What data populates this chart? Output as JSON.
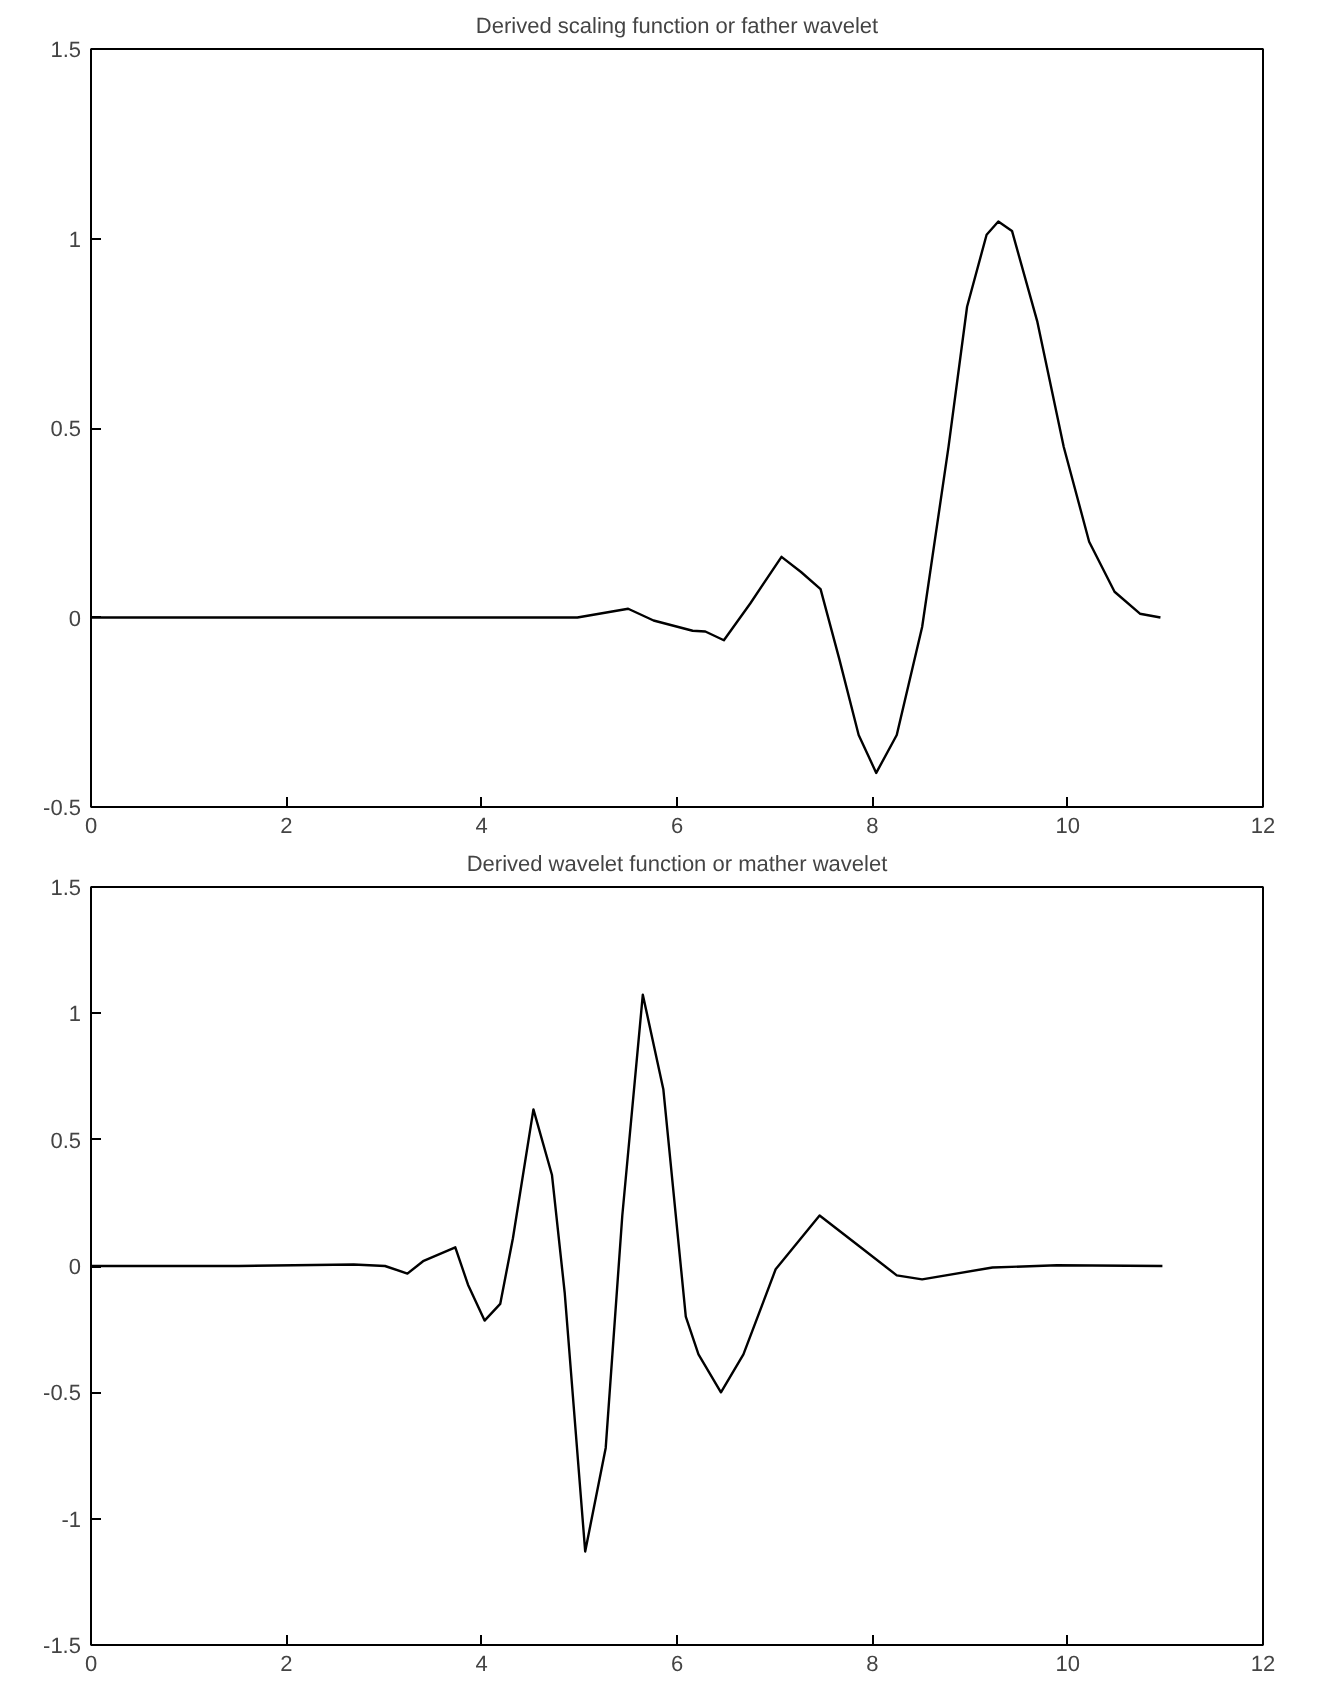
{
  "chart_data": [
    {
      "type": "line",
      "title": "Derived scaling function or father wavelet",
      "series": [
        {
          "color": "#000000",
          "x": [
            0,
            3.67,
            4.98,
            5.5,
            5.76,
            6.16,
            6.29,
            6.48,
            6.75,
            7.07,
            7.27,
            7.47,
            7.66,
            7.86,
            8.04,
            8.25,
            8.51,
            8.78,
            8.97,
            9.17,
            9.29,
            9.43,
            9.69,
            9.96,
            10.22,
            10.48,
            10.74,
            10.95
          ],
          "values": [
            0,
            0,
            0,
            0.023,
            -0.008,
            -0.035,
            -0.037,
            -0.06,
            0.037,
            0.16,
            0.12,
            0.075,
            -0.108,
            -0.31,
            -0.41,
            -0.31,
            -0.025,
            0.45,
            0.82,
            1.01,
            1.045,
            1.02,
            0.78,
            0.45,
            0.2,
            0.068,
            0.01,
            0
          ]
        }
      ],
      "xlim": [
        0,
        12
      ],
      "xticks": [
        0,
        2,
        4,
        6,
        8,
        10,
        12
      ],
      "ylim": [
        -0.5,
        1.5
      ],
      "yticks": [
        -0.5,
        0,
        0.5,
        1,
        1.5
      ],
      "grid": false,
      "line_style": "solid",
      "marker": "none"
    },
    {
      "type": "line",
      "title": "Derived wavelet function or mather wavelet",
      "series": [
        {
          "color": "#000000",
          "x": [
            0,
            1.51,
            2.69,
            3.01,
            3.24,
            3.4,
            3.73,
            3.86,
            4.03,
            4.19,
            4.32,
            4.53,
            4.72,
            4.85,
            5.06,
            5.27,
            5.44,
            5.65,
            5.86,
            6.09,
            6.22,
            6.45,
            6.68,
            7.01,
            7.46,
            7.86,
            8.25,
            8.51,
            9.23,
            9.89,
            10.97
          ],
          "values": [
            0,
            0,
            0.006,
            0,
            -0.03,
            0.019,
            0.074,
            -0.074,
            -0.216,
            -0.15,
            0.11,
            0.62,
            0.36,
            -0.105,
            -1.13,
            -0.72,
            0.2,
            1.074,
            0.7,
            -0.2,
            -0.35,
            -0.5,
            -0.35,
            -0.013,
            0.2,
            0.08,
            -0.037,
            -0.053,
            -0.006,
            0.003,
            0
          ]
        }
      ],
      "xlim": [
        0,
        12
      ],
      "xticks": [
        0,
        2,
        4,
        6,
        8,
        10,
        12
      ],
      "ylim": [
        -1.5,
        1.5
      ],
      "yticks": [
        -1.5,
        -1,
        -0.5,
        0,
        0.5,
        1,
        1.5
      ],
      "grid": false,
      "line_style": "solid",
      "marker": "none"
    }
  ]
}
